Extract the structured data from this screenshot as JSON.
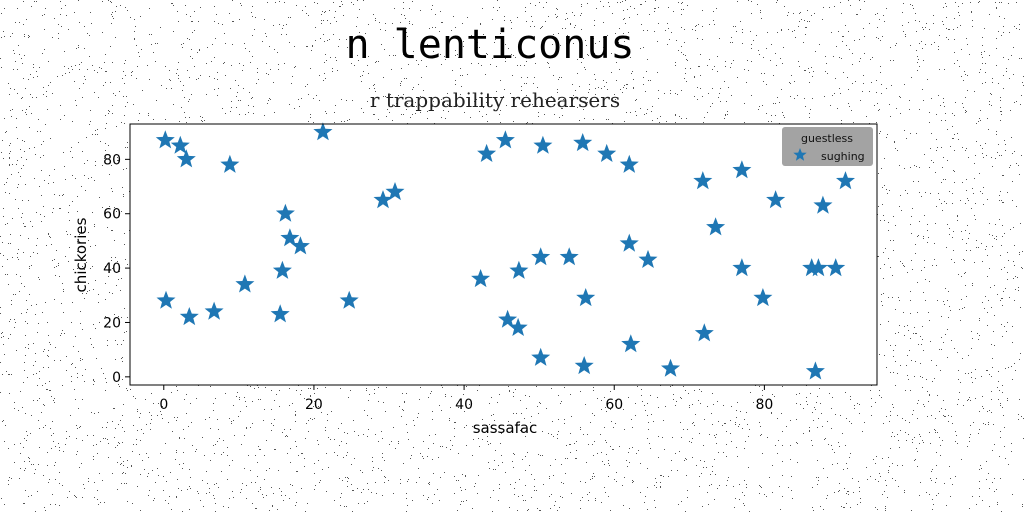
{
  "title": "n lenticonus",
  "subtitle": "r trappability rehearsers",
  "colors": {
    "marker": "#1f77b4",
    "legend_bg": "#999999"
  },
  "chart_data": {
    "type": "scatter",
    "xlabel": "sassafac",
    "ylabel": "chickories",
    "xlim": [
      -4.5,
      95
    ],
    "ylim": [
      -3,
      93
    ],
    "xticks": [
      0,
      20,
      40,
      60,
      80
    ],
    "yticks": [
      0,
      20,
      40,
      60,
      80
    ],
    "grid": false,
    "legend": {
      "title": "guestless",
      "position": "top-right"
    },
    "marker": "star",
    "series": [
      {
        "name": "sughing",
        "x": [
          0.2,
          2.2,
          3.0,
          8.8,
          21.2,
          16.2,
          16.8,
          18.2,
          15.8,
          29.2,
          30.8,
          0.3,
          3.4,
          6.7,
          10.8,
          15.5,
          24.7,
          43.0,
          45.5,
          50.5,
          55.8,
          59.0,
          62.0,
          42.2,
          45.8,
          47.2,
          47.3,
          50.2,
          50.2,
          54.0,
          56.2,
          56.0,
          62.0,
          62.2,
          64.5,
          67.5,
          71.8,
          73.5,
          77.0,
          77.0,
          79.8,
          81.5,
          72.0,
          87.8,
          86.3,
          87.2,
          89.5,
          90.8,
          86.8
        ],
        "y": [
          87,
          85,
          80,
          78,
          90,
          60,
          51,
          48,
          39,
          65,
          68,
          28,
          22,
          24,
          34,
          23,
          28,
          82,
          87,
          85,
          86,
          82,
          78,
          36,
          21,
          18,
          39,
          7,
          44,
          44,
          29,
          4,
          49,
          12,
          43,
          3,
          72,
          55,
          76,
          40,
          29,
          65,
          16,
          63,
          40,
          40,
          40,
          72,
          2
        ]
      }
    ]
  }
}
